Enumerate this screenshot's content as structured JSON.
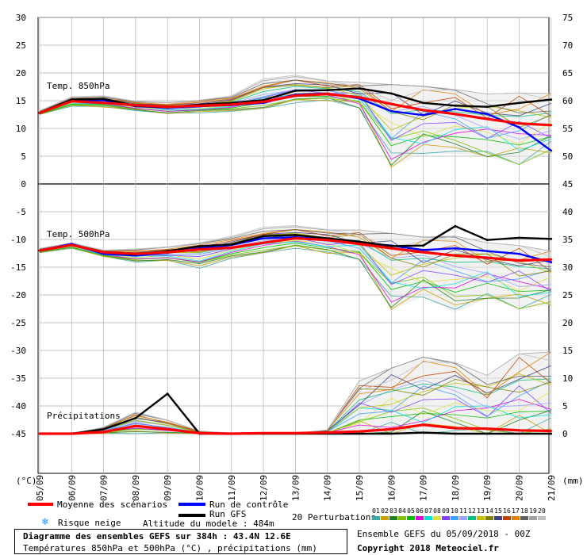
{
  "header": {
    "unit_left": "(°C)",
    "unit_right": "(mm)"
  },
  "panels": {
    "t850_label": "Temp. 850hPa",
    "t500_label": "Temp. 500hPa",
    "precip_label": "Précipitations"
  },
  "legend": {
    "mean_label": "Moyenne des scénarios",
    "control_label": "Run de contrôle",
    "gfs_label": "Run GFS",
    "snow_label": "Risque neige",
    "altitude_label": "Altitude du modele : 484m",
    "perturbations_label": "20 Perturbations",
    "perturbation_numbers": [
      "01",
      "02",
      "03",
      "04",
      "05",
      "06",
      "07",
      "08",
      "09",
      "10",
      "11",
      "12",
      "13",
      "14",
      "15",
      "16",
      "17",
      "18",
      "19",
      "20"
    ],
    "perturbation_colors": [
      "#3aa8a8",
      "#c8a000",
      "#208020",
      "#80c000",
      "#00c000",
      "#e000e0",
      "#00e0e0",
      "#e0e040",
      "#8040ff",
      "#40a0ff",
      "#a0a0ff",
      "#00c080",
      "#c0c000",
      "#808000",
      "#404080",
      "#c04000",
      "#e08000",
      "#606060",
      "#a0a0a0",
      "#c0c0c0"
    ],
    "mean_color": "#ff0000",
    "control_color": "#0000ff",
    "gfs_color": "#000000"
  },
  "footer": {
    "title_line": "Diagramme des ensembles GEFS sur 384h : 43.4N 12.6E",
    "subtitle_line": "Températures 850hPa et 500hPa (°C) , précipitations (mm)",
    "run_info": "Ensemble GEFS du 05/09/2018 - 00Z",
    "copyright": "Copyright 2018 Meteociel.fr"
  },
  "chart_data": {
    "type": "line",
    "x_dates": [
      "05/09",
      "06/09",
      "07/09",
      "08/09",
      "09/09",
      "10/09",
      "11/09",
      "12/09",
      "13/09",
      "14/09",
      "15/09",
      "16/09",
      "17/09",
      "18/09",
      "19/09",
      "20/09",
      "21/09"
    ],
    "left_axis": {
      "ticks": [
        30,
        25,
        20,
        15,
        10,
        5,
        0,
        -5,
        -10,
        -15,
        -20,
        -25,
        -30,
        -35,
        -40,
        -45
      ],
      "ylim": [
        -45,
        30
      ]
    },
    "right_axis_temp": {
      "ticks": [
        75,
        70,
        65,
        60,
        55,
        50,
        45,
        40,
        35,
        30,
        25,
        20
      ],
      "ylim": [
        20,
        75
      ]
    },
    "right_axis_precip": {
      "ticks": [
        15,
        10,
        5,
        0
      ],
      "ylim": [
        0,
        15
      ]
    },
    "grid": true,
    "series": [
      {
        "name": "Moyenne des scénarios",
        "panel": "t850",
        "day_values": [
          12.8,
          14.9,
          14.6,
          14.2,
          13.9,
          14.1,
          14.3,
          14.8,
          15.9,
          16.2,
          15.6,
          14.4,
          13.3,
          12.6,
          11.7,
          10.9,
          10.6
        ]
      },
      {
        "name": "Run de contrôle",
        "panel": "t850",
        "day_values": [
          12.8,
          14.9,
          15.1,
          14.0,
          13.8,
          14.0,
          14.2,
          14.6,
          16.1,
          16.3,
          15.4,
          13.1,
          12.4,
          13.5,
          12.6,
          10.2,
          6.0
        ]
      },
      {
        "name": "Run GFS",
        "panel": "t850",
        "day_values": [
          12.8,
          15.2,
          15.3,
          14.1,
          13.8,
          14.3,
          14.6,
          15.1,
          16.8,
          16.9,
          17.2,
          16.3,
          14.6,
          14.1,
          13.9,
          14.6,
          15.2
        ]
      },
      {
        "name": "Moyenne des scénarios",
        "panel": "t500",
        "day_values": [
          -12.0,
          -11.0,
          -12.3,
          -12.6,
          -12.3,
          -11.8,
          -11.5,
          -10.6,
          -9.8,
          -10.1,
          -10.8,
          -11.6,
          -12.3,
          -12.9,
          -13.3,
          -13.8,
          -13.6
        ]
      },
      {
        "name": "Run de contrôle",
        "panel": "t500",
        "day_values": [
          -12.0,
          -10.8,
          -12.6,
          -12.9,
          -12.4,
          -11.6,
          -11.0,
          -9.8,
          -9.6,
          -10.0,
          -10.6,
          -11.1,
          -11.9,
          -11.6,
          -12.1,
          -12.6,
          -14.1
        ]
      },
      {
        "name": "Run GFS",
        "panel": "t500",
        "day_values": [
          -12.0,
          -11.0,
          -12.3,
          -12.7,
          -12.1,
          -11.2,
          -10.9,
          -9.4,
          -9.2,
          -9.8,
          -10.4,
          -11.2,
          -11.1,
          -7.6,
          -10.1,
          -9.7,
          -9.9
        ]
      },
      {
        "name": "Run GFS",
        "panel": "precip",
        "day_values": [
          0,
          0,
          0.8,
          2.8,
          7.2,
          0,
          0,
          0,
          0,
          0,
          0,
          0,
          0.2,
          0,
          0,
          0,
          0
        ]
      },
      {
        "name": "Moyenne des scénarios",
        "panel": "precip",
        "day_values": [
          0,
          0,
          0.3,
          1.4,
          0.8,
          0.1,
          0,
          0.1,
          0.1,
          0.2,
          0.4,
          0.8,
          1.6,
          1.0,
          0.9,
          0.6,
          0.5
        ]
      }
    ],
    "spread_envelope": {
      "t850_min": [
        12.5,
        14.0,
        13.8,
        13.2,
        12.6,
        12.8,
        13.0,
        13.4,
        14.6,
        14.9,
        13.7,
        3.0,
        5.5,
        5.4,
        4.9,
        3.5,
        5.6
      ],
      "t850_max": [
        13.2,
        15.7,
        15.9,
        15.0,
        14.8,
        15.2,
        15.9,
        18.9,
        19.6,
        18.7,
        18.3,
        17.9,
        17.6,
        17.0,
        16.2,
        16.4,
        16.3
      ],
      "t500_min": [
        -12.4,
        -11.6,
        -13.1,
        -14.1,
        -13.9,
        -15.2,
        -13.5,
        -12.6,
        -11.6,
        -12.6,
        -13.6,
        -22.6,
        -20.4,
        -23.2,
        -20.6,
        -22.5,
        -21.8
      ],
      "t500_max": [
        -11.6,
        -10.6,
        -11.9,
        -11.6,
        -11.2,
        -10.4,
        -9.4,
        -7.8,
        -7.5,
        -8.1,
        -8.3,
        -8.9,
        -9.6,
        -9.4,
        -10.6,
        -11.1,
        -12.1
      ],
      "precip_max": [
        0,
        0,
        1.2,
        4.1,
        2.6,
        0.5,
        0.1,
        0.1,
        0.1,
        0.7,
        9.5,
        11.8,
        13.8,
        12.8,
        10.5,
        14.4,
        14.7
      ]
    }
  }
}
